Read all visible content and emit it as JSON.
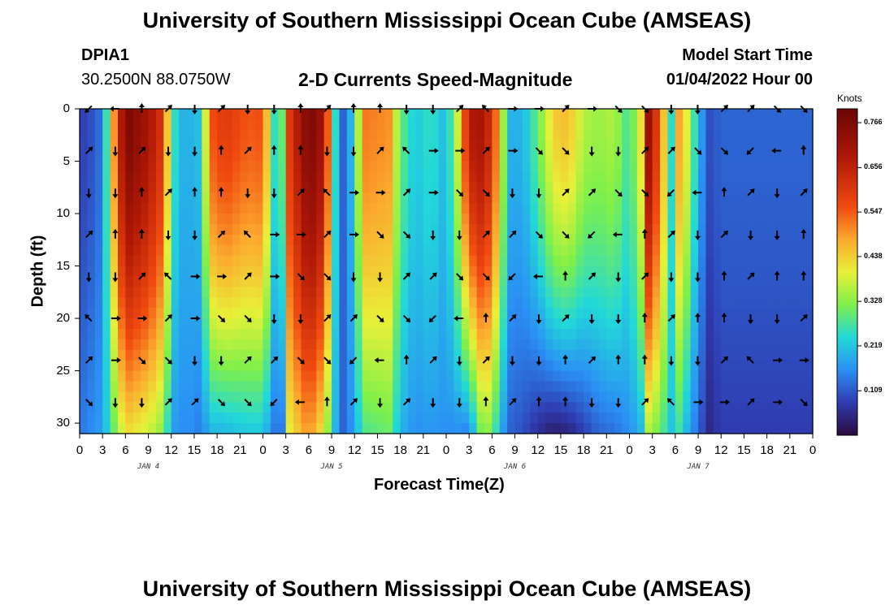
{
  "header": {
    "title_top": "University of Southern Mississippi Ocean Cube (AMSEAS)",
    "title_bottom": "University of Southern Mississippi Ocean Cube (AMSEAS)",
    "station_id": "DPIA1",
    "station_coords": "30.2500N  88.0750W",
    "chart_title": "2-D Currents Speed-Magnitude",
    "model_start_label": "Model Start Time",
    "model_start_value": "01/04/2022 Hour 00"
  },
  "chart_data": {
    "type": "heatmap",
    "title": "2-D Currents Speed-Magnitude",
    "xlabel": "Forecast Time(Z)",
    "ylabel": "Depth (ft)",
    "x_tick_labels": [
      "0",
      "3",
      "6",
      "9",
      "12",
      "15",
      "18",
      "21",
      "0",
      "3",
      "6",
      "9",
      "12",
      "15",
      "18",
      "21",
      "0",
      "3",
      "6",
      "9",
      "12",
      "15",
      "18",
      "21",
      "0",
      "3",
      "6",
      "9",
      "12",
      "15",
      "18",
      "21",
      "0"
    ],
    "x_range_hours": [
      0,
      96
    ],
    "date_labels": [
      {
        "text": "JAN 4",
        "hour": 9
      },
      {
        "text": "JAN 5",
        "hour": 33
      },
      {
        "text": "JAN 6",
        "hour": 57
      },
      {
        "text": "JAN 7",
        "hour": 81
      }
    ],
    "y_ticks": [
      0,
      5,
      10,
      15,
      20,
      25,
      30
    ],
    "y_range_ft": [
      0,
      31
    ],
    "colorbar": {
      "label": "Knots",
      "ticks": [
        0.109,
        0.219,
        0.328,
        0.438,
        0.547,
        0.656,
        0.766
      ],
      "range": [
        0,
        0.8
      ]
    },
    "speed_profile": [
      [
        0,
        0.08,
        0.14
      ],
      [
        1.5,
        0.1,
        0.16
      ],
      [
        3,
        0.14,
        0.18
      ],
      [
        4.5,
        0.5,
        0.3
      ],
      [
        6,
        0.78,
        0.42
      ],
      [
        9,
        0.7,
        0.38
      ],
      [
        11,
        0.6,
        0.32
      ],
      [
        12,
        0.3,
        0.18
      ],
      [
        13,
        0.2,
        0.16
      ],
      [
        14.5,
        0.2,
        0.16
      ],
      [
        16,
        0.22,
        0.14
      ],
      [
        17,
        0.55,
        0.2
      ],
      [
        19,
        0.6,
        0.2
      ],
      [
        22,
        0.55,
        0.22
      ],
      [
        24,
        0.56,
        0.22
      ],
      [
        25.5,
        0.26,
        0.14
      ],
      [
        26.5,
        0.3,
        0.14
      ],
      [
        27.5,
        0.6,
        0.4
      ],
      [
        30,
        0.78,
        0.5
      ],
      [
        32,
        0.7,
        0.4
      ],
      [
        33.5,
        0.25,
        0.2
      ],
      [
        34.5,
        0.12,
        0.12
      ],
      [
        35.5,
        0.2,
        0.16
      ],
      [
        37.5,
        0.52,
        0.28
      ],
      [
        40.5,
        0.5,
        0.3
      ],
      [
        42,
        0.3,
        0.2
      ],
      [
        44,
        0.22,
        0.16
      ],
      [
        46,
        0.26,
        0.17
      ],
      [
        48,
        0.2,
        0.16
      ],
      [
        49.5,
        0.38,
        0.16
      ],
      [
        51,
        0.68,
        0.14
      ],
      [
        53,
        0.7,
        0.36
      ],
      [
        55,
        0.48,
        0.22
      ],
      [
        56,
        0.2,
        0.12
      ],
      [
        58,
        0.2,
        0.1
      ],
      [
        60,
        0.3,
        0.06
      ],
      [
        62,
        0.44,
        0.03
      ],
      [
        64,
        0.46,
        0.04
      ],
      [
        66,
        0.36,
        0.08
      ],
      [
        68,
        0.34,
        0.12
      ],
      [
        70,
        0.36,
        0.13
      ],
      [
        72,
        0.26,
        0.16
      ],
      [
        73.5,
        0.42,
        0.2
      ],
      [
        74.5,
        0.72,
        0.35
      ],
      [
        76,
        0.55,
        0.3
      ],
      [
        77.5,
        0.25,
        0.22
      ],
      [
        78.5,
        0.48,
        0.26
      ],
      [
        79.5,
        0.4,
        0.2
      ],
      [
        81,
        0.2,
        0.12
      ],
      [
        82.5,
        0.1,
        0.05
      ],
      [
        84,
        0.12,
        0.08
      ],
      [
        96,
        0.12,
        0.08
      ]
    ],
    "vector_rows_ft": [
      0,
      4,
      8,
      12,
      16,
      20,
      24,
      28
    ],
    "vector_directions": [
      "SW",
      "W",
      "N",
      "NE",
      "S",
      "NE",
      "S",
      "S",
      "N",
      "NE",
      "N",
      "N",
      "S",
      "S",
      "NE",
      "NW",
      "E",
      "E",
      "NE",
      "E",
      "SE",
      "SE",
      "S",
      "S",
      "NE",
      "NE",
      "SE",
      "SE"
    ]
  },
  "colors": {
    "background": "#ffffff",
    "plot_border": "#000000"
  }
}
